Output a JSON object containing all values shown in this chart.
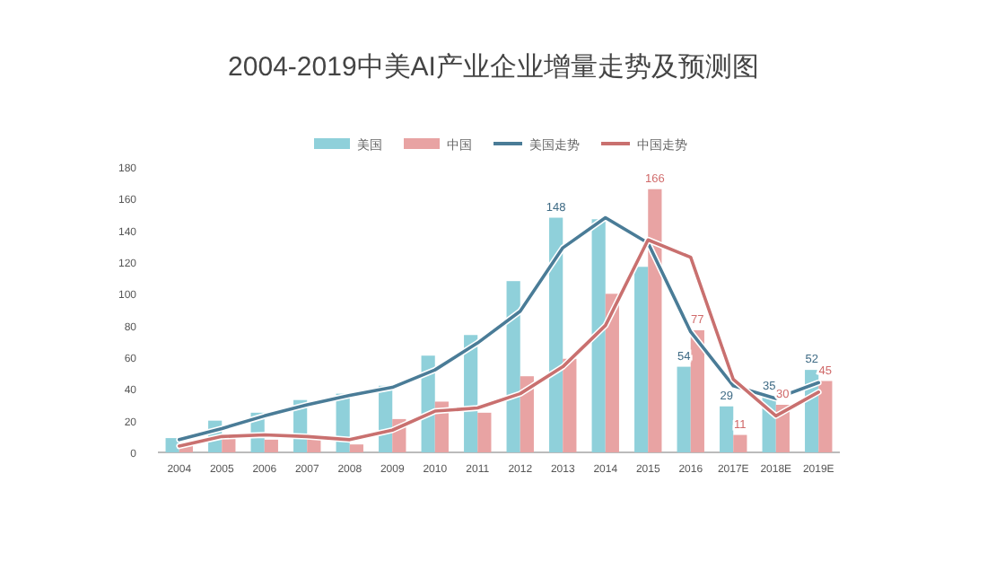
{
  "chart_data": {
    "type": "bar",
    "title": "2004-2019中美AI产业企业增量走势及预测图",
    "categories": [
      "2004",
      "2005",
      "2006",
      "2007",
      "2008",
      "2009",
      "2010",
      "2011",
      "2012",
      "2013",
      "2014",
      "2015",
      "2016",
      "2017E",
      "2018E",
      "2019E"
    ],
    "series": [
      {
        "name": "美国",
        "color": "#8fd0da",
        "values": [
          9,
          20,
          25,
          33,
          37,
          42,
          61,
          74,
          108,
          148,
          147,
          117,
          54,
          29,
          35,
          52
        ],
        "value_labels": [
          null,
          null,
          null,
          null,
          null,
          null,
          null,
          null,
          null,
          "148",
          null,
          null,
          "54",
          "29",
          "35",
          "52"
        ]
      },
      {
        "name": "中国",
        "color": "#e8a3a3",
        "values": [
          5,
          11,
          8,
          10,
          5,
          21,
          32,
          25,
          48,
          59,
          100,
          166,
          77,
          11,
          30,
          45
        ],
        "value_labels": [
          null,
          null,
          null,
          null,
          null,
          null,
          null,
          null,
          null,
          null,
          null,
          "166",
          "77",
          "11",
          "30",
          "45"
        ]
      },
      {
        "name": "美国走势",
        "type": "line",
        "color": "#4a7c97",
        "values": [
          8,
          15,
          23,
          30,
          36,
          41,
          52,
          69,
          89,
          129,
          148,
          132,
          76,
          42,
          34,
          44
        ]
      },
      {
        "name": "中国走势",
        "type": "line",
        "color": "#c9706f",
        "values": [
          4,
          10,
          11,
          10,
          8,
          14,
          26,
          28,
          37,
          54,
          80,
          134,
          123,
          46,
          23,
          38
        ]
      }
    ],
    "ylim": [
      0,
      180
    ],
    "yticks": [
      0,
      20,
      40,
      60,
      80,
      100,
      120,
      140,
      160,
      180
    ],
    "grid": false,
    "legend": "top",
    "line_style": "solid",
    "marker": "none"
  }
}
